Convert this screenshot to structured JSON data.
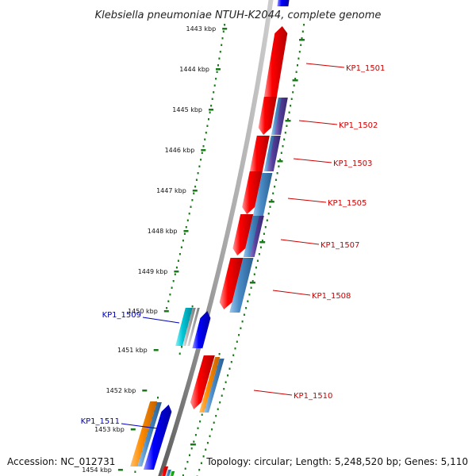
{
  "title": "Klebsiella pneumoniae NTUH-K2044, complete genome",
  "footer": {
    "accession": "Accession: NC_012731",
    "summary": "Topology: circular; Length: 5,248,520 bp; Genes: 5,110"
  },
  "colors": {
    "backbone": "#8a8a8a",
    "tick": "#1a7a1a",
    "forward_label": "#cc0000",
    "reverse_label": "#0000bb",
    "red": "#ff0000",
    "blue": "#0000ff",
    "steelblue": "#4a8cc8",
    "purple": "#55409a",
    "orange": "#ff8c00",
    "cyan": "#00c8d8",
    "gray": "#b0b0b0",
    "green": "#22bb22"
  },
  "scale_labels": [
    {
      "label": "1443 kbp"
    },
    {
      "label": "1444 kbp"
    },
    {
      "label": "1445 kbp"
    },
    {
      "label": "1446 kbp"
    },
    {
      "label": "1447 kbp"
    },
    {
      "label": "1448 kbp"
    },
    {
      "label": "1449 kbp"
    },
    {
      "label": "1450 kbp"
    },
    {
      "label": "1451 kbp"
    },
    {
      "label": "1452 kbp"
    },
    {
      "label": "1453 kbp"
    },
    {
      "label": "1454 kbp"
    }
  ],
  "gene_labels": [
    {
      "label": "KP1_1501",
      "strand": "forward"
    },
    {
      "label": "KP1_1502",
      "strand": "forward"
    },
    {
      "label": "KP1_1503",
      "strand": "forward"
    },
    {
      "label": "KP1_1505",
      "strand": "forward"
    },
    {
      "label": "KP1_1507",
      "strand": "forward"
    },
    {
      "label": "KP1_1508",
      "strand": "forward"
    },
    {
      "label": "KP1_1509",
      "strand": "reverse"
    },
    {
      "label": "KP1_1510",
      "strand": "forward"
    },
    {
      "label": "KP1_1511",
      "strand": "reverse"
    }
  ]
}
